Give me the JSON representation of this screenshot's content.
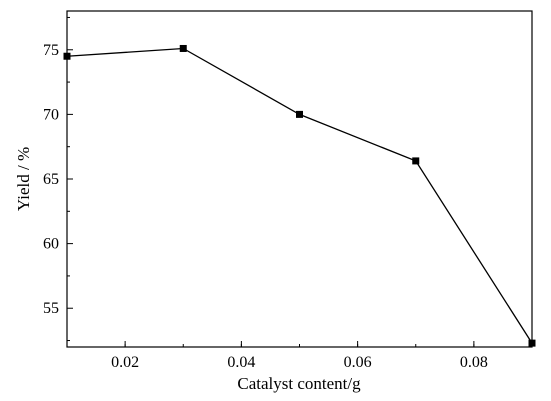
{
  "chart_data": {
    "type": "line",
    "title": "",
    "xlabel": "Catalyst content/g",
    "ylabel": "Yield / %",
    "xlim": [
      0.01,
      0.09
    ],
    "ylim": [
      52,
      78
    ],
    "xticks": [
      "0.02",
      "0.04",
      "0.06",
      "0.08"
    ],
    "yticks": [
      "55",
      "60",
      "65",
      "70",
      "75"
    ],
    "grid": false,
    "series": [
      {
        "x": [
          0.01,
          0.03,
          0.05,
          0.07,
          0.09
        ],
        "y": [
          74.5,
          75.1,
          70.0,
          66.4,
          52.3
        ],
        "marker": "square",
        "color": "#000000"
      }
    ]
  }
}
